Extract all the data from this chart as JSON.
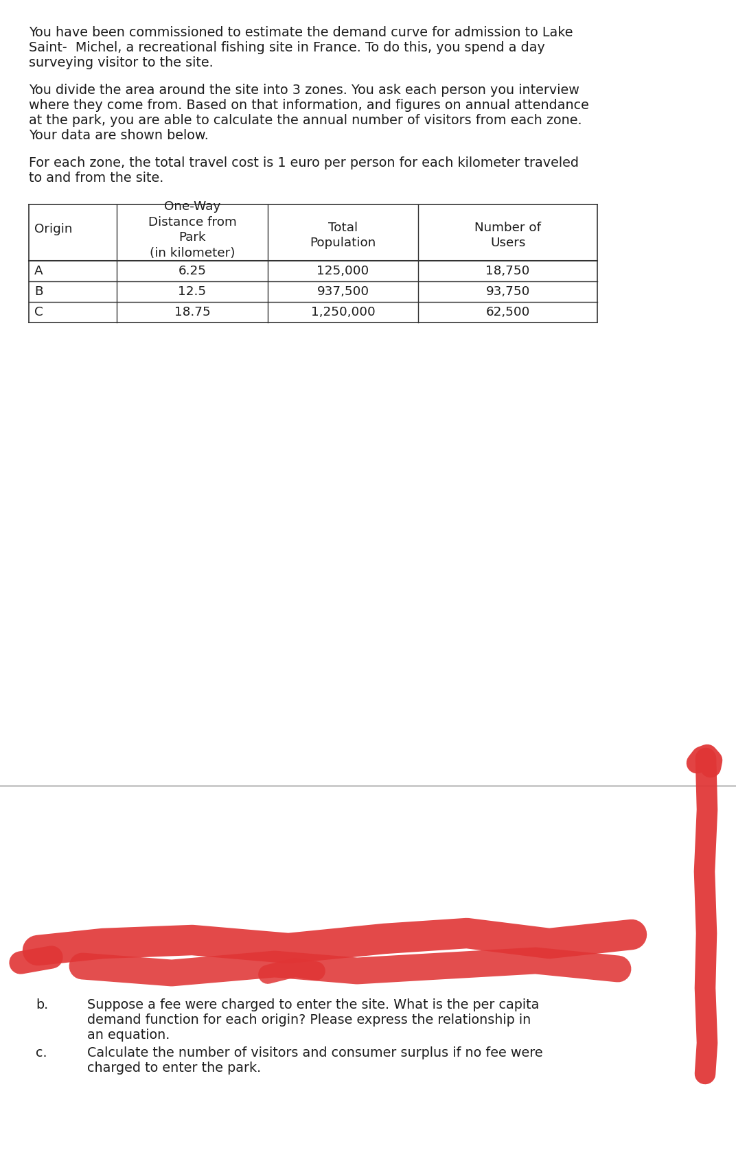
{
  "para1_lines": [
    "You have been commissioned to estimate the demand curve for admission to Lake",
    "Saint-  Michel, a recreational fishing site in France. To do this, you spend a day",
    "surveying visitor to the site."
  ],
  "para2_lines": [
    "You divide the area around the site into 3 zones. You ask each person you interview",
    "where they come from. Based on that information, and figures on annual attendance",
    "at the park, you are able to calculate the annual number of visitors from each zone.",
    "Your data are shown below."
  ],
  "para3_lines": [
    "For each zone, the total travel cost is 1 euro per person for each kilometer traveled",
    "to and from the site."
  ],
  "col_headers": [
    "Origin",
    "One-Way\nDistance from\nPark\n(in kilometer)",
    "Total\nPopulation",
    "Number of\nUsers"
  ],
  "table_data": [
    [
      "A",
      "6.25",
      "125,000",
      "18,750"
    ],
    [
      "B",
      "12.5",
      "937,500",
      "93,750"
    ],
    [
      "C",
      "18.75",
      "1,250,000",
      "62,500"
    ]
  ],
  "question_b_label": "b.",
  "question_b_lines": [
    "Suppose a fee were charged to enter the site. What is the per capita",
    "demand function for each origin? Please express the relationship in",
    "an equation."
  ],
  "question_c_label": "c.",
  "question_c_lines": [
    "Calculate the number of visitors and consumer surplus if no fee were",
    "charged to enter the park."
  ],
  "bg_color": "#ffffff",
  "text_color": "#1c1c1c",
  "redmark_color": "#e03535"
}
